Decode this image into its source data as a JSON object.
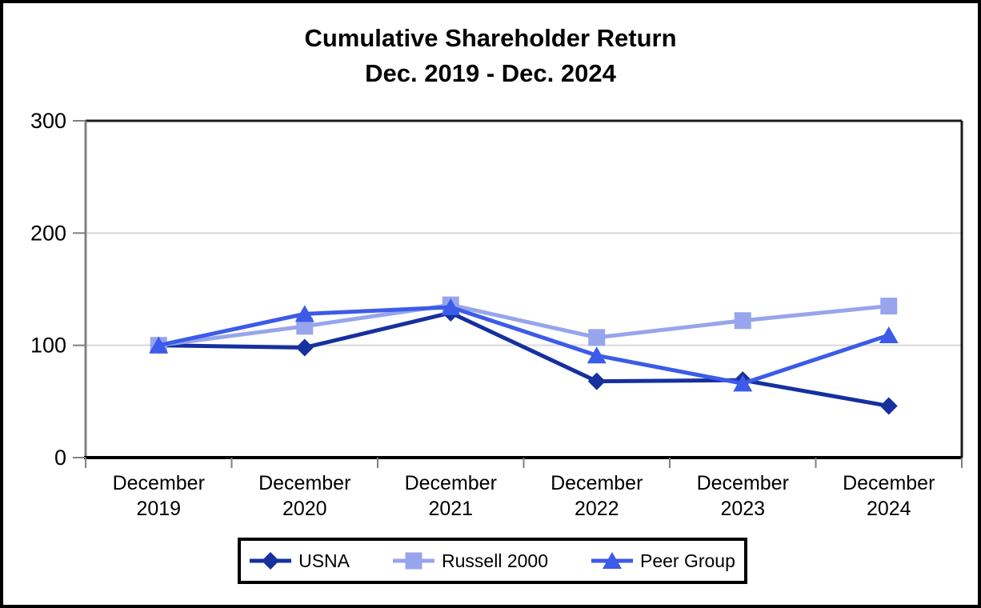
{
  "chart_data": {
    "type": "line",
    "title": "Cumulative Shareholder Return",
    "subtitle": "Dec. 2019 - Dec. 2024",
    "categories": [
      "December 2019",
      "December 2020",
      "December 2021",
      "December 2022",
      "December 2023",
      "December 2024"
    ],
    "series": [
      {
        "name": "USNA",
        "marker": "diamond",
        "color": "#16309E",
        "values": [
          100,
          98,
          129,
          68,
          69,
          46
        ]
      },
      {
        "name": "Russell 2000",
        "marker": "square",
        "color": "#97A5EC",
        "values": [
          100,
          117,
          136,
          107,
          122,
          135
        ]
      },
      {
        "name": "Peer Group",
        "marker": "triangle",
        "color": "#3C5BE8",
        "values": [
          100,
          128,
          134,
          91,
          66,
          109
        ]
      }
    ],
    "xlabel": "",
    "ylabel": "",
    "ylim": [
      0,
      300
    ],
    "yticks": [
      0,
      100,
      200,
      300
    ],
    "grid": true,
    "legend_position": "bottom"
  },
  "colors": {
    "gridline": "#D9D9D9",
    "axis_gray": "#808080",
    "plot_border": "#1A1A1A",
    "bottom_axis": "#000000",
    "text": "#000000",
    "frame_border": "#000000",
    "background": "#FFFFFF"
  }
}
